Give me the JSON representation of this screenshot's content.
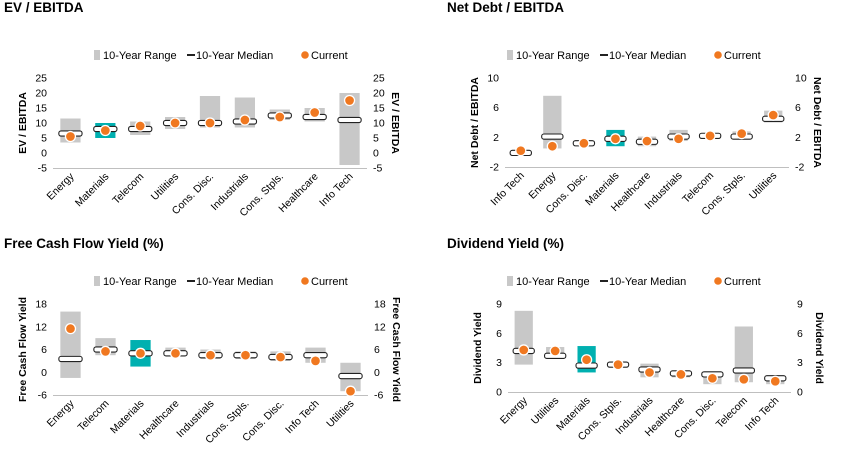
{
  "legend": {
    "range": "10-Year Range",
    "median": "10-Year Median",
    "current": "Current",
    "colors": {
      "range": "#c8c8c8",
      "highlight": "#00b0b0",
      "current": "#f07820",
      "median_fill": "#ffffff",
      "median_stroke": "#222222"
    }
  },
  "chart_data": [
    {
      "type": "range-median-current",
      "title": "EV / EBITDA",
      "ylabel": "EV / EBITDA",
      "ylim": [
        -5,
        25
      ],
      "yticks": [
        -5,
        0,
        5,
        10,
        15,
        20,
        25
      ],
      "tick_labels": [
        "-5",
        "0",
        "5",
        "10",
        "15",
        "20",
        "25"
      ],
      "categories": [
        "Energy",
        "Materials",
        "Telecom",
        "Utilities",
        "Cons. Disc.",
        "Industrials",
        "Cons. Stpls.",
        "Healthcare",
        "Info Tech"
      ],
      "highlight": "Materials",
      "low": [
        3.5,
        5.0,
        6.0,
        8.0,
        8.5,
        8.5,
        11.0,
        10.5,
        -4.0
      ],
      "high": [
        11.5,
        10.0,
        10.5,
        12.0,
        19.0,
        18.5,
        14.5,
        15.0,
        20.0
      ],
      "median": [
        6.5,
        8.0,
        8.0,
        10.0,
        10.0,
        10.5,
        12.5,
        12.0,
        11.0
      ],
      "current": [
        5.5,
        7.5,
        9.0,
        10.0,
        10.0,
        11.0,
        12.0,
        13.5,
        17.5
      ]
    },
    {
      "type": "range-median-current",
      "title": "Net Debt / EBITDA",
      "ylabel": "Net Debt / EBITDA",
      "ylim": [
        -2,
        10
      ],
      "yticks": [
        -2,
        2,
        6,
        10
      ],
      "tick_labels": [
        "-2",
        "2",
        "6",
        "10"
      ],
      "categories": [
        "Info Tech",
        "Energy",
        "Cons. Disc.",
        "Materials",
        "Healthcare",
        "Industrials",
        "Telecom",
        "Cons. Stpls.",
        "Utilities"
      ],
      "highlight": "Materials",
      "low": [
        -0.4,
        0.5,
        0.8,
        0.8,
        0.8,
        1.5,
        1.8,
        1.8,
        4.0
      ],
      "high": [
        0.2,
        7.6,
        1.6,
        3.0,
        2.1,
        3.0,
        2.5,
        2.8,
        5.6
      ],
      "median": [
        -0.1,
        2.1,
        1.2,
        1.8,
        1.4,
        2.1,
        2.2,
        2.1,
        4.5
      ],
      "current": [
        0.2,
        0.8,
        1.2,
        1.8,
        1.5,
        1.8,
        2.2,
        2.5,
        5.0
      ]
    },
    {
      "type": "range-median-current",
      "title": "Free Cash Flow Yield (%)",
      "ylabel": "Free Cash Flow Yield",
      "ylim": [
        -6,
        18
      ],
      "yticks": [
        -6,
        0,
        6,
        12,
        18
      ],
      "tick_labels": [
        "-6",
        "0",
        "6",
        "12",
        "18"
      ],
      "categories": [
        "Energy",
        "Telecom",
        "Materials",
        "Healthcare",
        "Industrials",
        "Cons. Stpls.",
        "Cons. Disc.",
        "Info Tech",
        "Utilities"
      ],
      "highlight": "Materials",
      "low": [
        -1.5,
        4.5,
        1.5,
        4.5,
        3.5,
        3.5,
        3.0,
        2.5,
        -5.0
      ],
      "high": [
        16.0,
        9.0,
        8.5,
        6.5,
        6.0,
        5.5,
        5.5,
        6.5,
        2.5
      ],
      "median": [
        3.5,
        6.0,
        5.0,
        5.0,
        4.5,
        4.5,
        4.0,
        4.5,
        -1.0
      ],
      "current": [
        11.5,
        5.5,
        5.0,
        5.0,
        4.5,
        4.5,
        4.0,
        3.0,
        -5.0
      ]
    },
    {
      "type": "range-median-current",
      "title": "Dividend Yield (%)",
      "ylabel": "Dividend Yield",
      "ylim": [
        0,
        9
      ],
      "yticks": [
        0,
        3,
        6,
        9
      ],
      "tick_labels": [
        "0",
        "3",
        "6",
        "9"
      ],
      "categories": [
        "Energy",
        "Utilities",
        "Materials",
        "Cons. Stpls.",
        "Industrials",
        "Healthcare",
        "Cons. Disc.",
        "Telecom",
        "Info Tech"
      ],
      "highlight": "Materials",
      "low": [
        2.8,
        3.5,
        2.0,
        2.5,
        1.5,
        1.5,
        0.8,
        1.0,
        0.8
      ],
      "high": [
        8.3,
        4.6,
        4.7,
        3.1,
        2.9,
        2.2,
        2.0,
        6.7,
        1.6
      ],
      "median": [
        4.2,
        3.7,
        2.7,
        2.8,
        2.3,
        1.9,
        1.8,
        2.2,
        1.4
      ],
      "current": [
        4.3,
        4.2,
        3.3,
        2.8,
        2.0,
        1.8,
        1.4,
        1.3,
        1.1
      ]
    }
  ]
}
